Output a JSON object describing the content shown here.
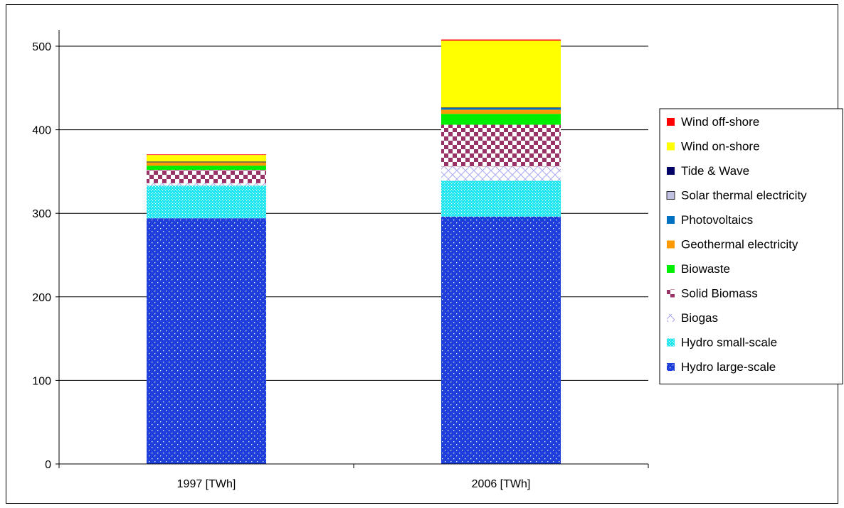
{
  "chart_data": {
    "type": "bar",
    "stacked": true,
    "categories": [
      "1997 [TWh]",
      "2006 [TWh]"
    ],
    "ylim": [
      0,
      500
    ],
    "yticks": [
      0,
      100,
      200,
      300,
      400,
      500
    ],
    "grid": true,
    "legend_position": "right",
    "series": [
      {
        "name": "Hydro large-scale",
        "values": [
          294,
          296
        ],
        "color": "#1f3fdc",
        "pattern": "dots"
      },
      {
        "name": "Hydro small-scale",
        "values": [
          39,
          43
        ],
        "color": "#22e6f0",
        "pattern": "fine-dots"
      },
      {
        "name": "Biogas",
        "values": [
          3,
          17
        ],
        "color": "#c8c8f0",
        "pattern": "diamond"
      },
      {
        "name": "Solid Biomass",
        "values": [
          16,
          50
        ],
        "color": "#993366",
        "pattern": "checker"
      },
      {
        "name": "Biowaste",
        "values": [
          5,
          13
        ],
        "color": "#00ee00",
        "pattern": "solid"
      },
      {
        "name": "Geothermal electricity",
        "values": [
          4,
          5
        ],
        "color": "#ff9900",
        "pattern": "solid"
      },
      {
        "name": "Photovoltaics",
        "values": [
          0.2,
          2
        ],
        "color": "#0070c0",
        "pattern": "solid"
      },
      {
        "name": "Solar thermal electricity",
        "values": [
          0,
          0
        ],
        "color": "#c0c0e0",
        "pattern": "solid"
      },
      {
        "name": "Tide & Wave",
        "values": [
          0.6,
          0.6
        ],
        "color": "#000066",
        "pattern": "solid"
      },
      {
        "name": "Wind on-shore",
        "values": [
          8,
          80
        ],
        "color": "#ffff00",
        "pattern": "solid"
      },
      {
        "name": "Wind off-shore",
        "values": [
          0.1,
          1.4
        ],
        "color": "#ff0000",
        "pattern": "solid"
      }
    ]
  }
}
